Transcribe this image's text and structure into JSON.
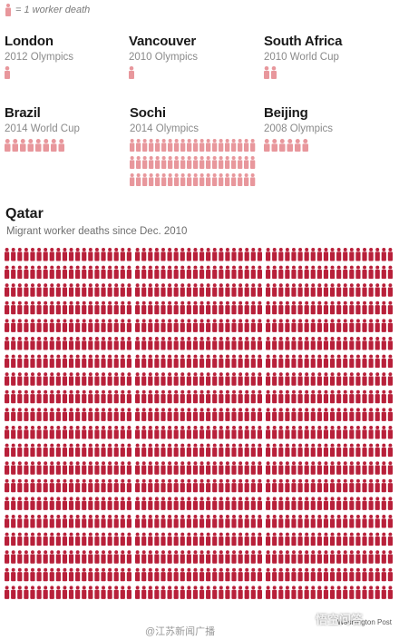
{
  "legend": {
    "text": "= 1 worker death",
    "icon": "worker-figure-icon"
  },
  "colors": {
    "light": "#e8979c",
    "dark": "#b8203a",
    "title": "#1a1a1a",
    "subtitle": "#8a8a8a"
  },
  "cities": [
    {
      "id": "london",
      "name": "London",
      "event": "2012 Olympics",
      "deaths": 1
    },
    {
      "id": "vancouver",
      "name": "Vancouver",
      "event": "2010 Olympics",
      "deaths": 1
    },
    {
      "id": "south-africa",
      "name": "South Africa",
      "event": "2010 World Cup",
      "deaths": 2
    },
    {
      "id": "brazil",
      "name": "Brazil",
      "event": "2014 World Cup",
      "deaths": 8
    },
    {
      "id": "sochi",
      "name": "Sochi",
      "event": "2014 Olympics",
      "deaths": 60
    },
    {
      "id": "beijing",
      "name": "Beijing",
      "event": "2008 Olympics",
      "deaths": 6
    }
  ],
  "qatar": {
    "name": "Qatar",
    "subtitle": "Migrant worker deaths since Dec. 2010",
    "deaths": 1200
  },
  "credit": "Washington Post",
  "watermark_left": "@江苏新闻广播",
  "watermark_right": "悟空问答"
}
